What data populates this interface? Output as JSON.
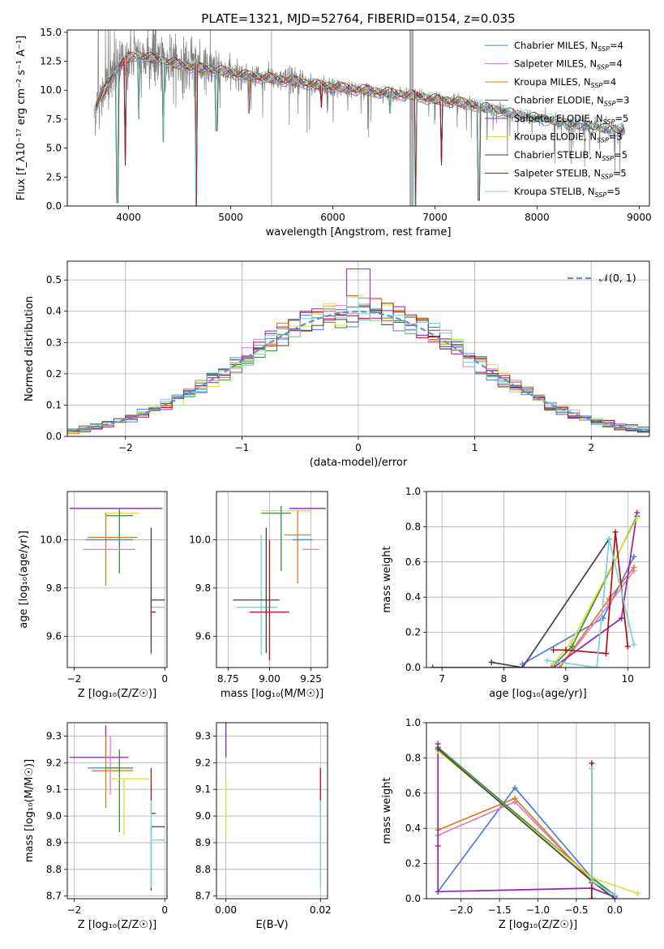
{
  "colors": {
    "Chabrier MILES": "#4c7de0",
    "Salpeter MILES": "#e07ad0",
    "Kroupa MILES": "#d9801e",
    "Chabrier ELODIE": "#3a8a3a",
    "Salpeter ELODIE": "#9a1fb0",
    "Kroupa ELODIE": "#d8e040",
    "Chabrier STELIB": "#444444",
    "Salpeter STELIB": "#b01010",
    "Kroupa STELIB": "#78d2d8",
    "normal": "#5b8fd6",
    "data": "#7f7f7f"
  },
  "chart_data": [
    {
      "id": "spectrum",
      "type": "line",
      "title": "PLATE=1321, MJD=52764, FIBERID=0154, z=0.035",
      "xlabel": "wavelength [Angstrom, rest frame]",
      "ylabel": "Flux [f_λ10⁻¹⁷ erg cm⁻² s⁻¹ A⁻¹]",
      "xlim": [
        3400,
        9100
      ],
      "ylim": [
        0,
        15.2
      ],
      "xticks": [
        4000,
        5000,
        6000,
        7000,
        8000,
        9000
      ],
      "yticks": [
        "0.0",
        "2.5",
        "5.0",
        "7.5",
        "10.0",
        "12.5",
        "15.0"
      ],
      "grid": false,
      "legend_position": "top-right",
      "legend": [
        {
          "name": "Chabrier MILES",
          "nssp": "4"
        },
        {
          "name": "Salpeter MILES",
          "nssp": "4"
        },
        {
          "name": "Kroupa MILES",
          "nssp": "4"
        },
        {
          "name": "Chabrier ELODIE",
          "nssp": "3"
        },
        {
          "name": "Salpeter ELODIE",
          "nssp": "5"
        },
        {
          "name": "Kroupa ELODIE",
          "nssp": "3"
        },
        {
          "name": "Chabrier STELIB",
          "nssp": "5"
        },
        {
          "name": "Salpeter STELIB",
          "nssp": "5"
        },
        {
          "name": "Kroupa STELIB",
          "nssp": "5"
        }
      ],
      "continuum": {
        "x": [
          3660,
          3700,
          3800,
          3900,
          4000,
          4100,
          4200,
          4300,
          4400,
          4500,
          4600,
          4700,
          4800,
          5000,
          5200,
          5400,
          5600,
          5800,
          6000,
          6200,
          6400,
          6600,
          6800,
          7000,
          7200,
          7400,
          7600,
          7800,
          8000,
          8200,
          8400,
          8600,
          8860
        ],
        "y": [
          8.0,
          9.0,
          10.5,
          12.0,
          12.8,
          13.0,
          12.8,
          12.6,
          12.4,
          12.2,
          12.0,
          11.9,
          11.8,
          11.5,
          11.2,
          11.0,
          10.8,
          10.5,
          10.3,
          10.1,
          9.9,
          9.7,
          9.5,
          9.2,
          9.0,
          8.7,
          8.3,
          7.9,
          7.6,
          7.3,
          7.0,
          6.8,
          6.5
        ]
      },
      "dips": [
        {
          "x": 3890,
          "y": 0.3
        },
        {
          "x": 3970,
          "y": 3.5
        },
        {
          "x": 4100,
          "y": 7.5
        },
        {
          "x": 4340,
          "y": 5.5
        },
        {
          "x": 4660,
          "y": 0.0
        },
        {
          "x": 4862,
          "y": 6.5
        },
        {
          "x": 5175,
          "y": 8.0
        },
        {
          "x": 5890,
          "y": 8.5
        },
        {
          "x": 6563,
          "y": 8.0
        },
        {
          "x": 6810,
          "y": 0.0
        },
        {
          "x": 7060,
          "y": 3.5
        },
        {
          "x": 7430,
          "y": 0.5
        }
      ]
    },
    {
      "id": "residuals",
      "type": "line",
      "xlabel": "(data-model)/error",
      "ylabel": "Normed distribution",
      "xlim": [
        -2.5,
        2.5
      ],
      "ylim": [
        0,
        0.56
      ],
      "xticks": [
        "−2",
        "−1",
        "0",
        "1",
        "2"
      ],
      "yticks": [
        "0.0",
        "0.1",
        "0.2",
        "0.3",
        "0.4",
        "0.5"
      ],
      "grid": true,
      "legend_position": "top-right",
      "legend_label": "𝒩(0, 1)",
      "bin_width": 0.1
    },
    {
      "id": "age-z",
      "type": "scatter",
      "xlabel": "Z [log₁₀(Z/Z☉)]",
      "ylabel": "age  [log₁₀(age/yr)]",
      "xlim": [
        -2.15,
        0.05
      ],
      "ylim": [
        9.47,
        10.2
      ],
      "xticks": [
        "−2",
        "0"
      ],
      "yticks": [
        "9.6",
        "9.8",
        "10.0"
      ],
      "grid": true,
      "points": [
        {
          "model": "Salpeter ELODIE",
          "x": -1.1,
          "y": 10.13,
          "xerr": [
            1.0,
            1.05
          ],
          "yerr": [
            0.0,
            0.0
          ]
        },
        {
          "model": "Kroupa ELODIE",
          "x": -0.95,
          "y": 10.11,
          "xerr": [
            0.4,
            0.4
          ],
          "yerr": [
            0.0,
            0.0
          ]
        },
        {
          "model": "Chabrier ELODIE",
          "x": -1.0,
          "y": 10.1,
          "xerr": [
            0.3,
            0.3
          ],
          "yerr": [
            0.24,
            0.03
          ]
        },
        {
          "model": "Kroupa MILES",
          "x": -1.3,
          "y": 10.01,
          "xerr": [
            0.4,
            0.7
          ],
          "yerr": [
            0.2,
            0.1
          ]
        },
        {
          "model": "Chabrier MILES",
          "x": -1.3,
          "y": 10.0,
          "xerr": [
            0.45,
            0.6
          ],
          "yerr": [
            0.0,
            0.0
          ]
        },
        {
          "model": "Salpeter MILES",
          "x": -1.25,
          "y": 9.96,
          "xerr": [
            0.55,
            0.6
          ],
          "yerr": [
            0.0,
            0.0
          ]
        },
        {
          "model": "Kroupa STELIB",
          "x": -0.3,
          "y": 9.72,
          "xerr": [
            0.0,
            0.3
          ],
          "yerr": [
            0.2,
            0.3
          ]
        },
        {
          "model": "Chabrier STELIB",
          "x": -0.3,
          "y": 9.75,
          "xerr": [
            0.0,
            0.3
          ],
          "yerr": [
            0.22,
            0.3
          ]
        },
        {
          "model": "Salpeter STELIB",
          "x": -0.3,
          "y": 9.7,
          "xerr": [
            0.0,
            0.1
          ],
          "yerr": [
            0.0,
            0.0
          ]
        }
      ]
    },
    {
      "id": "age-mass",
      "type": "scatter",
      "xlabel": "mass [log₁₀(M/M☉)]",
      "ylabel": "",
      "xlim": [
        8.68,
        9.35
      ],
      "ylim": [
        9.47,
        10.2
      ],
      "xticks": [
        "8.75",
        "9.00",
        "9.25"
      ],
      "yticks": [
        "9.6",
        "9.8",
        "10.0"
      ],
      "grid": true,
      "points": [
        {
          "model": "Salpeter ELODIE",
          "x": 9.22,
          "y": 10.13,
          "xerr": [
            0.1,
            0.12
          ],
          "yerr": [
            0.0,
            0.0
          ]
        },
        {
          "model": "Kroupa ELODIE",
          "x": 9.1,
          "y": 10.12,
          "xerr": [
            0.15,
            0.15
          ],
          "yerr": [
            0.0,
            0.0
          ]
        },
        {
          "model": "Chabrier ELODIE",
          "x": 9.07,
          "y": 10.11,
          "xerr": [
            0.12,
            0.06
          ],
          "yerr": [
            0.24,
            0.03
          ]
        },
        {
          "model": "Kroupa MILES",
          "x": 9.17,
          "y": 10.02,
          "xerr": [
            0.08,
            0.08
          ],
          "yerr": [
            0.2,
            0.1
          ]
        },
        {
          "model": "Chabrier MILES",
          "x": 9.2,
          "y": 10.0,
          "xerr": [
            0.06,
            0.06
          ],
          "yerr": [
            0.0,
            0.0
          ]
        },
        {
          "model": "Salpeter MILES",
          "x": 9.2,
          "y": 9.96,
          "xerr": [
            0.0,
            0.1
          ],
          "yerr": [
            0.0,
            0.0
          ]
        },
        {
          "model": "Kroupa STELIB",
          "x": 8.95,
          "y": 9.72,
          "xerr": [
            0.15,
            0.1
          ],
          "yerr": [
            0.2,
            0.3
          ]
        },
        {
          "model": "Chabrier STELIB",
          "x": 8.98,
          "y": 9.75,
          "xerr": [
            0.2,
            0.08
          ],
          "yerr": [
            0.22,
            0.3
          ]
        },
        {
          "model": "Salpeter STELIB",
          "x": 9.0,
          "y": 9.7,
          "xerr": [
            0.12,
            0.12
          ],
          "yerr": [
            0.2,
            0.3
          ]
        }
      ]
    },
    {
      "id": "mw-age",
      "type": "line",
      "xlabel": "age  [log₁₀(age/yr)]",
      "ylabel": "mass weight",
      "xlim": [
        6.75,
        10.35
      ],
      "ylim": [
        0,
        1.0
      ],
      "xticks": [
        "7",
        "8",
        "9",
        "10"
      ],
      "yticks": [
        "0.0",
        "0.2",
        "0.4",
        "0.6",
        "0.8",
        "1.0"
      ],
      "grid": true,
      "series": [
        {
          "model": "Chabrier MILES",
          "x": [
            8.3,
            9.6,
            10.1
          ],
          "y": [
            0.02,
            0.28,
            0.63
          ]
        },
        {
          "model": "Salpeter MILES",
          "x": [
            8.9,
            9.7,
            10.1
          ],
          "y": [
            0.0,
            0.36,
            0.55
          ]
        },
        {
          "model": "Kroupa MILES",
          "x": [
            8.9,
            9.7,
            10.1
          ],
          "y": [
            0.0,
            0.39,
            0.57
          ]
        },
        {
          "model": "Chabrier ELODIE",
          "x": [
            8.8,
            9.1,
            10.15
          ],
          "y": [
            0.01,
            0.12,
            0.86
          ]
        },
        {
          "model": "Salpeter ELODIE",
          "x": [
            6.85,
            8.8,
            9.9,
            10.15
          ],
          "y": [
            0.0,
            0.0,
            0.28,
            0.88
          ]
        },
        {
          "model": "Kroupa ELODIE",
          "x": [
            8.8,
            9.1,
            10.15
          ],
          "y": [
            0.02,
            0.15,
            0.85
          ]
        },
        {
          "model": "Chabrier STELIB",
          "x": [
            7.8,
            8.3,
            9.7
          ],
          "y": [
            0.03,
            0.0,
            0.73
          ]
        },
        {
          "model": "Salpeter STELIB",
          "x": [
            8.8,
            9.0,
            9.65,
            9.8,
            10.0
          ],
          "y": [
            0.1,
            0.1,
            0.08,
            0.77,
            0.12
          ]
        },
        {
          "model": "Kroupa STELIB",
          "x": [
            8.7,
            9.5,
            9.7,
            10.1
          ],
          "y": [
            0.04,
            0.0,
            0.73,
            0.13
          ]
        }
      ]
    },
    {
      "id": "mass-z",
      "type": "scatter",
      "xlabel": "Z [log₁₀(Z/Z☉)]",
      "ylabel": "mass [log₁₀(M/M☉)]",
      "xlim": [
        -2.15,
        0.05
      ],
      "ylim": [
        8.69,
        9.35
      ],
      "xticks": [
        "−2",
        "0"
      ],
      "yticks": [
        "8.7",
        "8.8",
        "8.9",
        "9.0",
        "9.1",
        "9.2",
        "9.3"
      ],
      "grid": true,
      "points": [
        {
          "model": "Salpeter ELODIE",
          "x": -1.3,
          "y": 9.22,
          "xerr": [
            0.8,
            0.5
          ],
          "yerr": [
            0.0,
            0.12
          ]
        },
        {
          "model": "Kroupa MILES",
          "x": -1.3,
          "y": 9.17,
          "xerr": [
            0.3,
            0.6
          ],
          "yerr": [
            0.14,
            0.13
          ]
        },
        {
          "model": "Chabrier MILES",
          "x": -1.3,
          "y": 9.18,
          "xerr": [
            0.4,
            0.3
          ],
          "yerr": [
            0.0,
            0.0
          ]
        },
        {
          "model": "Salpeter MILES",
          "x": -1.2,
          "y": 9.18,
          "xerr": [
            0.0,
            0.0
          ],
          "yerr": [
            0.1,
            0.12
          ]
        },
        {
          "model": "Chabrier ELODIE",
          "x": -1.0,
          "y": 9.18,
          "xerr": [
            0.3,
            0.3
          ],
          "yerr": [
            0.24,
            0.07
          ]
        },
        {
          "model": "Kroupa ELODIE",
          "x": -0.9,
          "y": 9.14,
          "xerr": [
            0.3,
            0.55
          ],
          "yerr": [
            0.21,
            0.0
          ]
        },
        {
          "model": "Salpeter STELIB",
          "x": -0.3,
          "y": 9.01,
          "xerr": [
            0.0,
            0.1
          ],
          "yerr": [
            0.0,
            0.17
          ]
        },
        {
          "model": "Chabrier STELIB",
          "x": -0.3,
          "y": 8.96,
          "xerr": [
            0.0,
            0.3
          ],
          "yerr": [
            0.24,
            0.0
          ]
        },
        {
          "model": "Kroupa STELIB",
          "x": -0.3,
          "y": 8.91,
          "xerr": [
            0.0,
            0.3
          ],
          "yerr": [
            0.18,
            0.15
          ]
        }
      ]
    },
    {
      "id": "mass-ebv",
      "type": "scatter",
      "xlabel": "E(B-V)",
      "ylabel": "",
      "xlim": [
        -0.002,
        0.0215
      ],
      "ylim": [
        8.69,
        9.35
      ],
      "xticks": [
        "0.00",
        "0.02"
      ],
      "yticks": [
        "8.7",
        "8.8",
        "8.9",
        "9.0",
        "9.1",
        "9.2",
        "9.3"
      ],
      "grid": true,
      "points": [
        {
          "model": "Salpeter ELODIE",
          "x": 0.0,
          "y": 9.22,
          "xerr": [
            0.0,
            0.0
          ],
          "yerr": [
            0.0,
            0.13
          ]
        },
        {
          "model": "Kroupa ELODIE",
          "x": 0.0,
          "y": 9.14,
          "xerr": [
            0.0,
            0.0
          ],
          "yerr": [
            0.21,
            0.0
          ]
        },
        {
          "model": "Salpeter STELIB",
          "x": 0.02,
          "y": 9.01,
          "xerr": [
            0.0,
            0.0
          ],
          "yerr": [
            0.0,
            0.17
          ]
        },
        {
          "model": "Kroupa STELIB",
          "x": 0.02,
          "y": 8.91,
          "xerr": [
            0.0,
            0.0
          ],
          "yerr": [
            0.18,
            0.15
          ]
        }
      ]
    },
    {
      "id": "mw-z",
      "type": "line",
      "xlabel": "Z [log₁₀(Z/Z☉)]",
      "ylabel": "mass weight",
      "xlim": [
        -2.45,
        0.45
      ],
      "ylim": [
        0,
        1.0
      ],
      "xticks": [
        "−2.0",
        "−1.5",
        "−1.0",
        "−0.5",
        "0.0"
      ],
      "yticks": [
        "0.0",
        "0.2",
        "0.4",
        "0.6",
        "0.8",
        "1.0"
      ],
      "grid": true,
      "series": [
        {
          "model": "Chabrier MILES",
          "x": [
            -2.3,
            -1.3,
            -0.3,
            0.0
          ],
          "y": [
            0.04,
            0.63,
            0.12,
            0.02
          ]
        },
        {
          "model": "Salpeter MILES",
          "x": [
            -2.3,
            -1.3,
            -0.3,
            0.0
          ],
          "y": [
            0.36,
            0.55,
            0.1,
            0.02
          ]
        },
        {
          "model": "Kroupa MILES",
          "x": [
            -2.3,
            -1.3,
            -0.3,
            0.0
          ],
          "y": [
            0.39,
            0.57,
            0.1,
            0.02
          ]
        },
        {
          "model": "Chabrier ELODIE",
          "x": [
            -2.3,
            -0.3,
            0.0
          ],
          "y": [
            0.86,
            0.12,
            0.02
          ]
        },
        {
          "model": "Salpeter ELODIE",
          "x": [
            -2.3,
            -2.3,
            -2.3,
            -0.3,
            0.0
          ],
          "y": [
            0.88,
            0.3,
            0.04,
            0.06,
            0.01
          ]
        },
        {
          "model": "Kroupa ELODIE",
          "x": [
            -2.3,
            -0.3,
            0.3
          ],
          "y": [
            0.84,
            0.12,
            0.03
          ]
        },
        {
          "model": "Chabrier STELIB",
          "x": [
            -2.3,
            -0.3,
            0.0
          ],
          "y": [
            0.85,
            0.1,
            0.0
          ]
        },
        {
          "model": "Salpeter STELIB",
          "x": [
            -0.3,
            -0.3,
            -0.3
          ],
          "y": [
            0.77,
            0.09,
            0.0
          ]
        },
        {
          "model": "Kroupa STELIB",
          "x": [
            -0.3,
            -0.3,
            0.0
          ],
          "y": [
            0.74,
            0.1,
            0.02
          ]
        }
      ]
    }
  ]
}
